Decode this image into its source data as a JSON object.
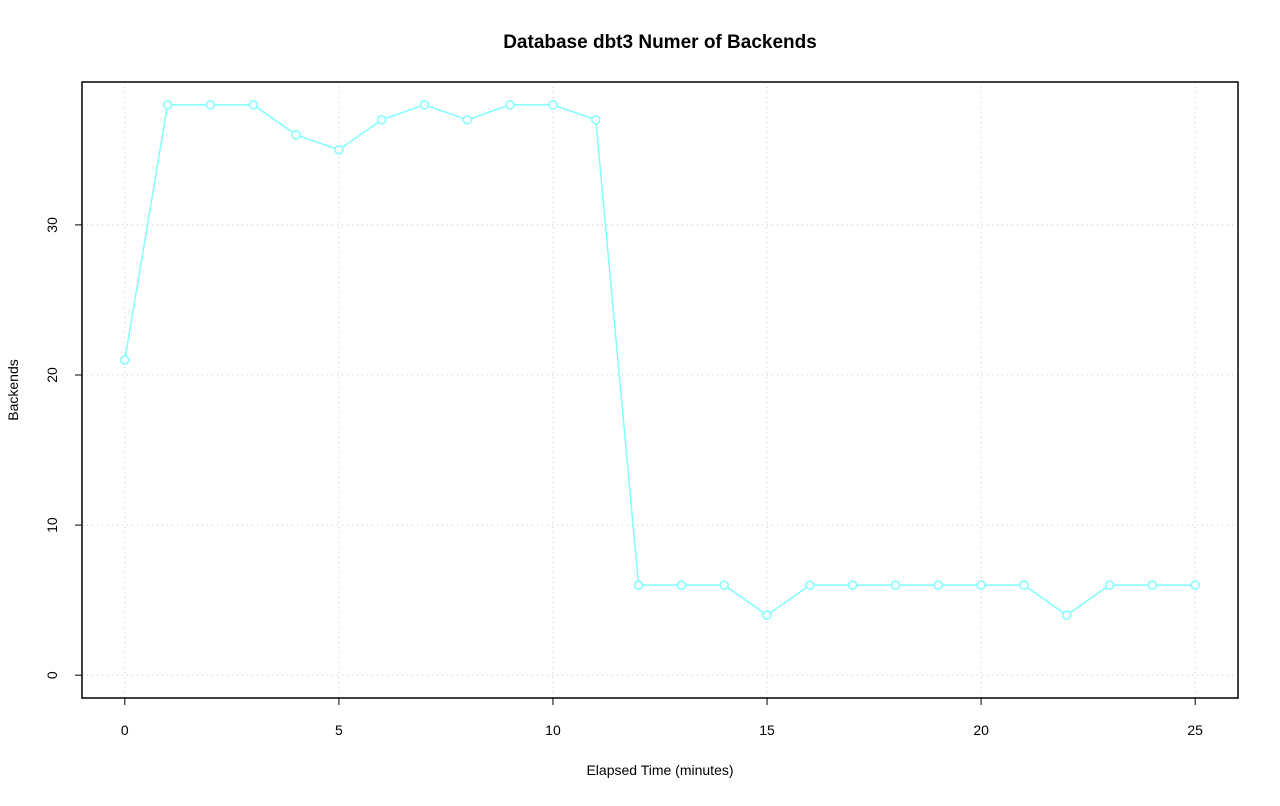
{
  "chart_data": {
    "type": "line",
    "title": "Database dbt3 Numer of Backends",
    "x_label": "Elapsed Time (minutes)",
    "y_label": "Backends",
    "x": [
      0,
      1,
      2,
      3,
      4,
      5,
      6,
      7,
      8,
      9,
      10,
      11,
      12,
      13,
      14,
      15,
      16,
      17,
      18,
      19,
      20,
      21,
      22,
      23,
      24,
      25
    ],
    "series": [
      {
        "name": "Backends",
        "color": "#7fffff",
        "values": [
          21,
          38,
          38,
          38,
          36,
          35,
          37,
          38,
          37,
          38,
          38,
          37,
          6,
          6,
          6,
          4,
          6,
          6,
          6,
          6,
          6,
          6,
          4,
          6,
          6,
          6
        ]
      }
    ],
    "xlim": [
      -1,
      26
    ],
    "ylim": [
      -1.52,
      39.52
    ],
    "xticks": [
      0,
      5,
      10,
      15,
      20,
      25
    ],
    "yticks": [
      0,
      10,
      20,
      30
    ],
    "grid": true,
    "markers": true
  }
}
